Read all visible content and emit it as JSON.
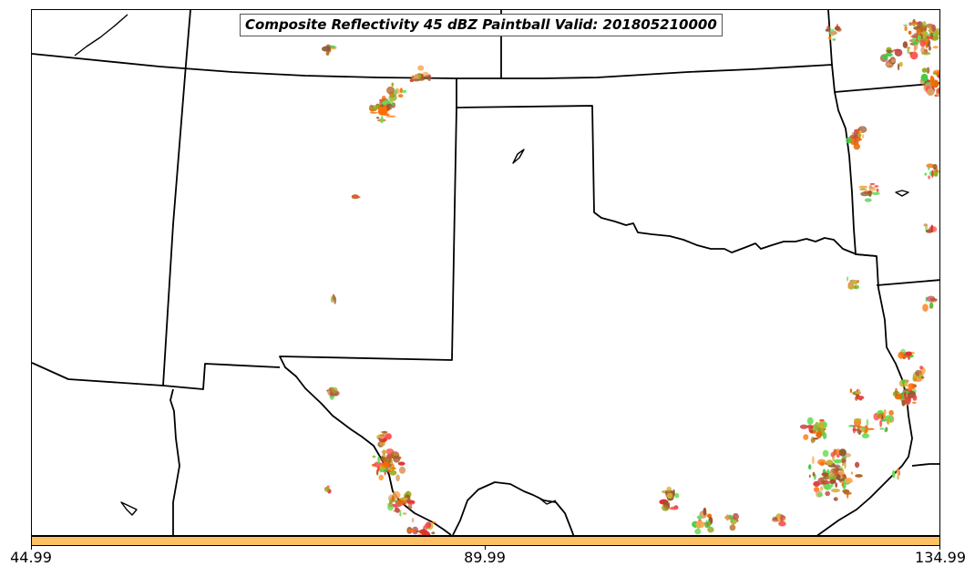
{
  "map": {
    "title": "Composite Reflectivity 45 dBZ Paintball Valid: 201805210000",
    "precip_colors": [
      "#ff6f00",
      "#e86a00",
      "#ffa64d",
      "#a0522d",
      "#b5651d",
      "#c0504d",
      "#ff4c4c",
      "#e03030",
      "#66dd55",
      "#44cc44",
      "#99aa22",
      "#c8b030",
      "#8b5a2b",
      "#d9a066"
    ],
    "border_color": "#000000"
  },
  "colorbar": {
    "color": "#ffc061",
    "ticks": [
      "44.99",
      "89.99",
      "134.99"
    ]
  }
}
